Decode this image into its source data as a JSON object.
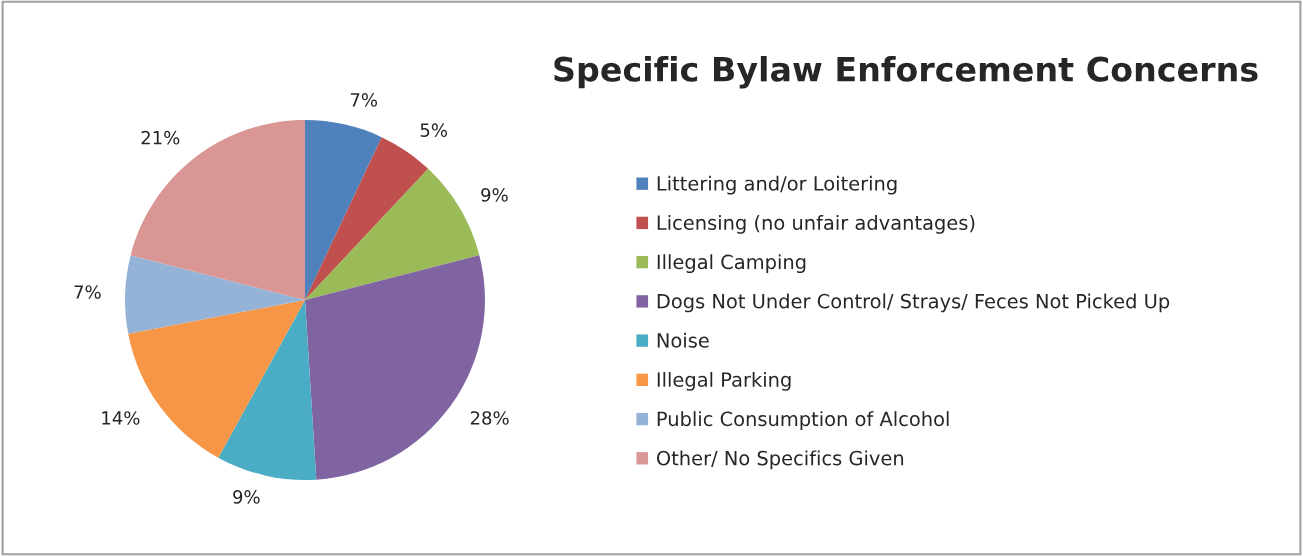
{
  "chart_data": {
    "type": "pie",
    "title": "Specific Bylaw Enforcement Concerns",
    "categories": [
      "Littering and/or Loitering",
      "Licensing (no unfair advantages)",
      "Illegal Camping",
      "Dogs Not Under Control/ Strays/ Feces Not Picked Up",
      "Noise",
      "Illegal Parking",
      "Public Consumption of Alcohol",
      "Other/ No Specifics Given"
    ],
    "values": [
      7,
      5,
      9,
      28,
      9,
      14,
      7,
      21
    ],
    "value_labels": [
      "7%",
      "5%",
      "9%",
      "28%",
      "9%",
      "14%",
      "7%",
      "21%"
    ],
    "colors": [
      "#4f81bd",
      "#c0504d",
      "#9bbb59",
      "#8064a2",
      "#4bacc6",
      "#f79646",
      "#95b3d7",
      "#d99694"
    ],
    "legend": "right"
  }
}
